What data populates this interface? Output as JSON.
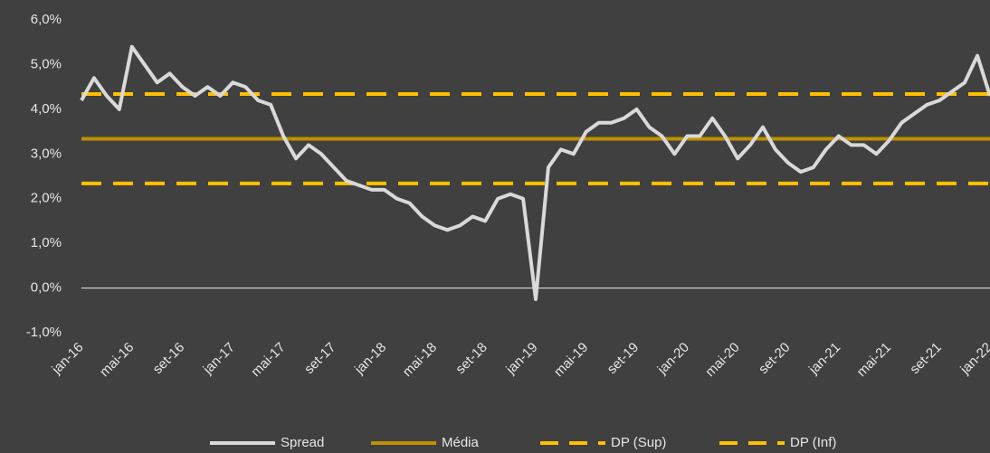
{
  "chart_data": {
    "type": "line",
    "categories": [
      "jan-16",
      null,
      null,
      null,
      "mai-16",
      null,
      null,
      null,
      "set-16",
      null,
      null,
      null,
      "jan-17",
      null,
      null,
      null,
      "mai-17",
      null,
      null,
      null,
      "set-17",
      null,
      null,
      null,
      "jan-18",
      null,
      null,
      null,
      "mai-18",
      null,
      null,
      null,
      "set-18",
      null,
      null,
      null,
      "jan-19",
      null,
      null,
      null,
      "mai-19",
      null,
      null,
      null,
      "set-19",
      null,
      null,
      null,
      "jan-20",
      null,
      null,
      null,
      "mai-20",
      null,
      null,
      null,
      "set-20",
      null,
      null,
      null,
      "jan-21",
      null,
      null,
      null,
      "mai-21",
      null,
      null,
      null,
      "set-21",
      null,
      null,
      null,
      "jan-22"
    ],
    "series": [
      {
        "name": "Spread",
        "color": "#d9d9d9",
        "values": [
          4.2,
          4.7,
          4.3,
          4.0,
          5.4,
          5.0,
          4.6,
          4.8,
          4.5,
          4.3,
          4.5,
          4.3,
          4.6,
          4.5,
          4.2,
          4.1,
          3.4,
          2.9,
          3.2,
          3.0,
          2.7,
          2.4,
          2.3,
          2.2,
          2.2,
          2.0,
          1.9,
          1.6,
          1.4,
          1.3,
          1.4,
          1.6,
          1.5,
          2.0,
          2.1,
          2.0,
          -0.25,
          2.7,
          3.1,
          3.0,
          3.5,
          3.7,
          3.7,
          3.8,
          4.0,
          3.6,
          3.4,
          3.0,
          3.4,
          3.4,
          3.8,
          3.4,
          2.9,
          3.2,
          3.6,
          3.1,
          2.8,
          2.6,
          2.7,
          3.1,
          3.4,
          3.2,
          3.2,
          3.0,
          3.3,
          3.7,
          3.9,
          4.1,
          4.2,
          4.4,
          4.6,
          5.2,
          4.3
        ]
      }
    ],
    "reference_lines": [
      {
        "name": "Média",
        "value": 3.34,
        "color": "#bf9000",
        "dashed": false
      },
      {
        "name": "DP (Sup)",
        "value": 4.34,
        "color": "#ffc000",
        "dashed": true
      },
      {
        "name": "DP (Inf)",
        "value": 2.34,
        "color": "#ffc000",
        "dashed": true
      }
    ],
    "ylim": [
      -1,
      6
    ],
    "yticks": [
      {
        "value": -1,
        "label": "-1,0%"
      },
      {
        "value": 0,
        "label": "0,0%"
      },
      {
        "value": 1,
        "label": "1,0%"
      },
      {
        "value": 2,
        "label": "2,0%"
      },
      {
        "value": 3,
        "label": "3,0%"
      },
      {
        "value": 4,
        "label": "4,0%"
      },
      {
        "value": 5,
        "label": "5,0%"
      },
      {
        "value": 6,
        "label": "6,0%"
      }
    ],
    "legend": "bottom"
  }
}
